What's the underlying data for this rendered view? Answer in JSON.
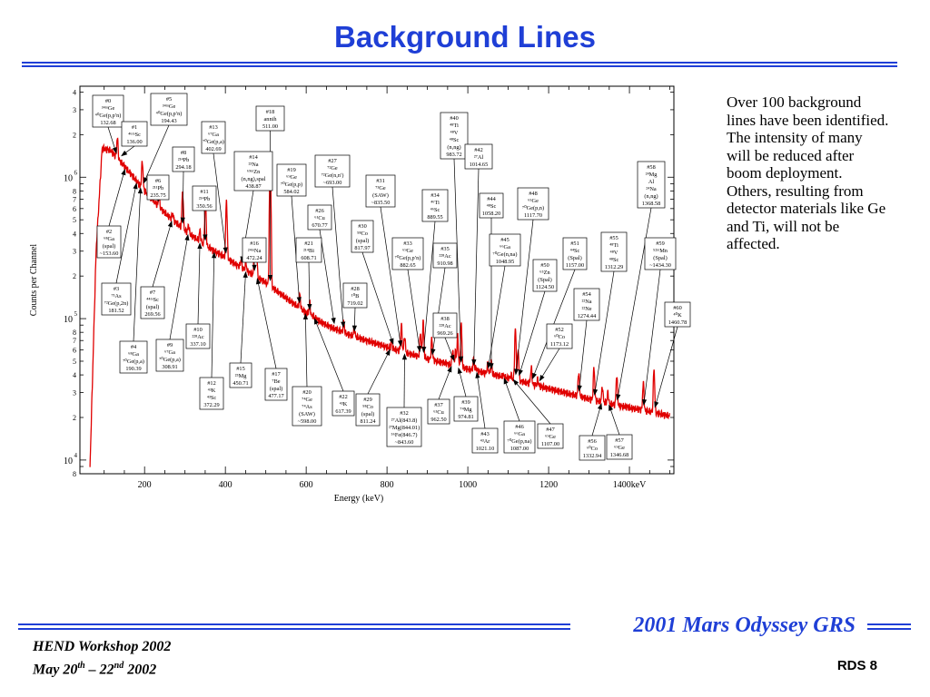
{
  "slide": {
    "title": "Background Lines",
    "side_text": "Over 100 background lines have been identified.  The intensity of many will be reduced after boom deployment.  Others, resulting from detector materials like Ge and Ti, will not be affected.",
    "brand": "2001 Mars Odyssey GRS",
    "workshop": "HEND Workshop 2002",
    "dates": {
      "pre": "May 20",
      "sup1": "th",
      "mid": " – 22",
      "sup2": "nd",
      "post": " 2002"
    },
    "slide_id": "RDS 8"
  },
  "colors": {
    "title": "#1f3fd6",
    "spectrum": "#e00000"
  },
  "chart_data": {
    "type": "line",
    "title": "",
    "xlabel": "Energy (keV)",
    "ylabel": "Counts per Channel",
    "xlim": [
      40,
      1510
    ],
    "ylim": [
      8000,
      4400000
    ],
    "yscale": "log",
    "x_ticks": [
      {
        "v": 200,
        "t": "200"
      },
      {
        "v": 400,
        "t": "400"
      },
      {
        "v": 600,
        "t": "600"
      },
      {
        "v": 800,
        "t": "800"
      },
      {
        "v": 1000,
        "t": "1000"
      },
      {
        "v": 1200,
        "t": "1200"
      },
      {
        "v": 1400,
        "t": "1400keV"
      }
    ],
    "y_decades": [
      {
        "v": 10000,
        "base": "10",
        "exp": "4"
      },
      {
        "v": 100000,
        "base": "10",
        "exp": "5"
      },
      {
        "v": 1000000,
        "base": "10",
        "exp": "6"
      }
    ],
    "y_minor_labels": [
      "2",
      "3",
      "4",
      "5",
      "6",
      "7",
      "8"
    ],
    "continuum": [
      [
        65,
        9000
      ],
      [
        80,
        300000
      ],
      [
        95,
        1600000
      ],
      [
        115,
        1550000
      ],
      [
        150,
        1200000
      ],
      [
        200,
        800000
      ],
      [
        250,
        560000
      ],
      [
        300,
        420000
      ],
      [
        350,
        330000
      ],
      [
        400,
        270000
      ],
      [
        450,
        220000
      ],
      [
        500,
        180000
      ],
      [
        550,
        140000
      ],
      [
        600,
        110000
      ],
      [
        650,
        90000
      ],
      [
        700,
        78000
      ],
      [
        750,
        70000
      ],
      [
        800,
        63000
      ],
      [
        850,
        57000
      ],
      [
        900,
        52000
      ],
      [
        950,
        48000
      ],
      [
        1000,
        44000
      ],
      [
        1050,
        41000
      ],
      [
        1100,
        38000
      ],
      [
        1150,
        35000
      ],
      [
        1200,
        32000
      ],
      [
        1250,
        29500
      ],
      [
        1300,
        27000
      ],
      [
        1350,
        25000
      ],
      [
        1400,
        23500
      ],
      [
        1450,
        22000
      ],
      [
        1500,
        20500
      ]
    ],
    "peaks": [
      {
        "e": 132.68,
        "y": 1900000
      },
      {
        "e": 136.0,
        "y": 1000000
      },
      {
        "e": 153.6,
        "y": 650000
      },
      {
        "e": 181.52,
        "y": 620000
      },
      {
        "e": 194.43,
        "y": 1300000
      },
      {
        "e": 235.75,
        "y": 720000
      },
      {
        "e": 269.56,
        "y": 560000
      },
      {
        "e": 294.18,
        "y": 800000
      },
      {
        "e": 308.91,
        "y": 460000
      },
      {
        "e": 337.1,
        "y": 420000
      },
      {
        "e": 350.56,
        "y": 700000
      },
      {
        "e": 372.29,
        "y": 290000
      },
      {
        "e": 402.69,
        "y": 690000
      },
      {
        "e": 438.87,
        "y": 260000
      },
      {
        "e": 450.71,
        "y": 250000
      },
      {
        "e": 472.24,
        "y": 330000
      },
      {
        "e": 477.17,
        "y": 280000
      },
      {
        "e": 511.0,
        "y": 1350000
      },
      {
        "e": 584.02,
        "y": 150000
      },
      {
        "e": 598.0,
        "y": 110000
      },
      {
        "e": 608.71,
        "y": 130000
      },
      {
        "e": 617.39,
        "y": 105000
      },
      {
        "e": 693.0,
        "y": 95000
      },
      {
        "e": 719.02,
        "y": 85000
      },
      {
        "e": 811.24,
        "y": 70000
      },
      {
        "e": 835.5,
        "y": 90000
      },
      {
        "e": 843.6,
        "y": 75000
      },
      {
        "e": 882.65,
        "y": 80000
      },
      {
        "e": 889.55,
        "y": 95000
      },
      {
        "e": 910.98,
        "y": 72000
      },
      {
        "e": 962.5,
        "y": 60000
      },
      {
        "e": 969.26,
        "y": 58000
      },
      {
        "e": 974.81,
        "y": 75000
      },
      {
        "e": 983.72,
        "y": 90000
      },
      {
        "e": 1014.65,
        "y": 52000
      },
      {
        "e": 1021.1,
        "y": 45000
      },
      {
        "e": 1048.95,
        "y": 47000
      },
      {
        "e": 1058.2,
        "y": 50000
      },
      {
        "e": 1087.0,
        "y": 40000
      },
      {
        "e": 1107.0,
        "y": 40000
      },
      {
        "e": 1117.7,
        "y": 85000
      },
      {
        "e": 1124.5,
        "y": 60000
      },
      {
        "e": 1157.0,
        "y": 45000
      },
      {
        "e": 1173.12,
        "y": 37000
      },
      {
        "e": 1274.44,
        "y": 42000
      },
      {
        "e": 1312.29,
        "y": 45000
      },
      {
        "e": 1332.94,
        "y": 33000
      },
      {
        "e": 1346.68,
        "y": 30000
      },
      {
        "e": 1368.58,
        "y": 40000
      },
      {
        "e": 1434.3,
        "y": 35000
      },
      {
        "e": 1460.78,
        "y": 44000
      }
    ],
    "annotations": [
      {
        "x": 102,
        "y": 105,
        "w": 34,
        "pe": 132.68,
        "l": [
          "#0",
          "³⁴ᵐGe",
          "⁴⁰Ge(p,p′n)",
          "132.68"
        ]
      },
      {
        "x": 166,
        "y": 103,
        "w": 40,
        "pe": 194.43,
        "l": [
          "#5",
          "³⁴ᵐGe",
          "⁴⁰Ge(p,p′n)",
          "194.43"
        ]
      },
      {
        "x": 282,
        "y": 117,
        "w": 31,
        "pe": 511.0,
        "l": [
          "#18",
          "annih",
          "511.00"
        ]
      },
      {
        "x": 485,
        "y": 124,
        "w": 30,
        "pe": 983.72,
        "l": [
          "#40",
          "⁴⁸Ti",
          "⁴⁸V",
          "⁴⁸Sc",
          "(n,ng)",
          "983.72"
        ]
      },
      {
        "x": 134,
        "y": 134,
        "w": 28,
        "pe": 136.0,
        "l": [
          "#1",
          "⁴⁶ᵐSc",
          "136.00"
        ]
      },
      {
        "x": 222,
        "y": 134,
        "w": 26,
        "pe": 402.69,
        "l": [
          "#13",
          "⁶⁷Ga",
          "⁷⁰Ge(p,a)",
          "402.69"
        ]
      },
      {
        "x": 190,
        "y": 162,
        "w": 24,
        "pe": 294.18,
        "l": [
          "#8",
          "²¹⁴Pb",
          "294.18"
        ]
      },
      {
        "x": 258,
        "y": 167,
        "w": 42,
        "pe": 438.87,
        "l": [
          "#14",
          "²³Na",
          "⁶⁹ᵐZn",
          "(n,ng),spal",
          "438.87"
        ]
      },
      {
        "x": 512,
        "y": 159,
        "w": 30,
        "pe": 1014.65,
        "l": [
          "#42",
          "²⁷Al",
          "1014.65"
        ]
      },
      {
        "x": 347,
        "y": 171,
        "w": 38,
        "pe": 693.0,
        "l": [
          "#27",
          "⁷²Ge",
          "⁷²Ge(n,n′)",
          "~693.00"
        ]
      },
      {
        "x": 305,
        "y": 181,
        "w": 32,
        "pe": 584.02,
        "l": [
          "#19",
          "⁶⁹Ge",
          "⁷⁰Ge(p,p)",
          "584.02"
        ]
      },
      {
        "x": 702,
        "y": 178,
        "w": 30,
        "pe": 1368.58,
        "l": [
          "#58",
          "²⁴Mg",
          "Al",
          "²⁴Na",
          "(n,ng)",
          "1368.58"
        ]
      },
      {
        "x": 162,
        "y": 193,
        "w": 24,
        "pe": 235.75,
        "l": [
          "#6",
          "²¹¹Pb",
          "235.75"
        ]
      },
      {
        "x": 403,
        "y": 193,
        "w": 32,
        "pe": 835.5,
        "l": [
          "#31",
          "⁷³Ge",
          "(SAW)",
          "~835.50"
        ]
      },
      {
        "x": 212,
        "y": 205,
        "w": 26,
        "pe": 350.56,
        "l": [
          "#11",
          "²¹⁴Pb",
          "350.56"
        ]
      },
      {
        "x": 570,
        "y": 207,
        "w": 34,
        "pe": 1117.7,
        "l": [
          "#48",
          "⁶⁵Ge",
          "⁷⁰Ge(p,n)",
          "1117.70"
        ]
      },
      {
        "x": 465,
        "y": 209,
        "w": 28,
        "pe": 889.55,
        "l": [
          "#34",
          "⁴⁶Ti",
          "⁴⁶Sc",
          "889.55"
        ]
      },
      {
        "x": 528,
        "y": 213,
        "w": 26,
        "pe": 1058.2,
        "l": [
          "#44",
          "⁴⁸Sc",
          "1058.20"
        ]
      },
      {
        "x": 339,
        "y": 226,
        "w": 26,
        "pe": 670.77,
        "l": [
          "#26",
          "⁶¹Cu",
          "670.77"
        ]
      },
      {
        "x": 387,
        "y": 243,
        "w": 24,
        "pe": 817.97,
        "l": [
          "#30",
          "⁵⁸Co",
          "(spal)",
          "817.97"
        ]
      },
      {
        "x": 107,
        "y": 249,
        "w": 26,
        "pe": 153.6,
        "l": [
          "#2",
          "⁶⁸Ga",
          "(spal)",
          "~153.60"
        ]
      },
      {
        "x": 539,
        "y": 258,
        "w": 34,
        "pe": 1048.95,
        "l": [
          "#45",
          "⁶⁶Ga",
          "⁷⁰Ge(n,na)",
          "1048.95"
        ]
      },
      {
        "x": 267,
        "y": 262,
        "w": 26,
        "pe": 472.24,
        "l": [
          "#16",
          "²⁴ᵐNa",
          "472.24"
        ]
      },
      {
        "x": 326,
        "y": 262,
        "w": 28,
        "pe": 608.71,
        "l": [
          "#21",
          "²¹⁴Bi",
          "608.71"
        ]
      },
      {
        "x": 432,
        "y": 262,
        "w": 34,
        "pe": 882.65,
        "l": [
          "#33",
          "⁶⁹Ge",
          "⁷⁰Ge(p,p′n)",
          "882.65"
        ]
      },
      {
        "x": 477,
        "y": 268,
        "w": 26,
        "pe": 910.98,
        "l": [
          "#35",
          "²²⁸Ac",
          "910.98"
        ]
      },
      {
        "x": 620,
        "y": 262,
        "w": 26,
        "pe": 1157.0,
        "l": [
          "#51",
          "⁴⁴Sc",
          "(Spal)",
          "1157.00"
        ]
      },
      {
        "x": 662,
        "y": 256,
        "w": 28,
        "pe": 1312.29,
        "l": [
          "#55",
          "⁴⁸Ti",
          "⁴⁸V",
          "⁴⁸Sc",
          "1312.29"
        ]
      },
      {
        "x": 710,
        "y": 262,
        "w": 34,
        "pe": 1434.3,
        "l": [
          "#59",
          "⁵²ᵐMn",
          "(Spal)",
          "~1434.30"
        ]
      },
      {
        "x": 587,
        "y": 286,
        "w": 26,
        "pe": 1124.5,
        "l": [
          "#50",
          "⁶⁵Zn",
          "(Spal)",
          "1124.50"
        ]
      },
      {
        "x": 112,
        "y": 312,
        "w": 32,
        "pe": 181.52,
        "l": [
          "#3",
          "⁷¹As",
          "⁷²Ge(p,2n)",
          "181.52"
        ]
      },
      {
        "x": 155,
        "y": 316,
        "w": 26,
        "pe": 269.56,
        "l": [
          "#7",
          "⁴⁴ᵐSc",
          "(spal)",
          "269.56"
        ]
      },
      {
        "x": 378,
        "y": 312,
        "w": 26,
        "pe": 719.02,
        "l": [
          "#28",
          "¹⁰B",
          "719.02"
        ]
      },
      {
        "x": 632,
        "y": 318,
        "w": 28,
        "pe": 1274.44,
        "l": [
          "#54",
          "²²Na",
          "²²Ne",
          "1274.44"
        ]
      },
      {
        "x": 732,
        "y": 333,
        "w": 28,
        "pe": 1460.78,
        "l": [
          "#60",
          "⁴⁰K",
          "1460.78"
        ]
      },
      {
        "x": 477,
        "y": 345,
        "w": 26,
        "pe": 969.26,
        "l": [
          "#38",
          "²²⁸Ac",
          "969.26"
        ]
      },
      {
        "x": 205,
        "y": 357,
        "w": 26,
        "pe": 337.1,
        "l": [
          "#10",
          "²²⁸Ac",
          "337.10"
        ]
      },
      {
        "x": 602,
        "y": 357,
        "w": 28,
        "pe": 1173.12,
        "l": [
          "#52",
          "⁶⁰Co",
          "1173.12"
        ]
      },
      {
        "x": 132,
        "y": 376,
        "w": 30,
        "pe": 190.39,
        "l": [
          "#4",
          "⁶⁸Ga",
          "⁷⁰Ge(p,a)",
          "190.39"
        ]
      },
      {
        "x": 172,
        "y": 374,
        "w": 30,
        "pe": 308.91,
        "l": [
          "#9",
          "⁶⁷Ga",
          "⁷⁰Ge(p,a)",
          "308.91"
        ]
      },
      {
        "x": 253,
        "y": 400,
        "w": 24,
        "pe": 450.71,
        "l": [
          "#15",
          "²⁵Mg",
          "450.71"
        ]
      },
      {
        "x": 292,
        "y": 406,
        "w": 24,
        "pe": 477.17,
        "l": [
          "#17",
          "⁷Be",
          "(spal)",
          "477.17"
        ]
      },
      {
        "x": 220,
        "y": 416,
        "w": 26,
        "pe": 372.29,
        "l": [
          "#12",
          "⁴³K",
          "⁴³Sc",
          "372.29"
        ]
      },
      {
        "x": 322,
        "y": 426,
        "w": 32,
        "pe": 598.0,
        "l": [
          "#20",
          "⁷⁴Ge",
          "⁷⁴As",
          "(SAW)",
          "~598.00"
        ]
      },
      {
        "x": 366,
        "y": 431,
        "w": 24,
        "pe": 617.39,
        "l": [
          "#22",
          "⁴³K",
          "617.39"
        ]
      },
      {
        "x": 392,
        "y": 434,
        "w": 26,
        "pe": 811.24,
        "l": [
          "#29",
          "⁵⁸Co",
          "(spal)",
          "811.24"
        ]
      },
      {
        "x": 426,
        "y": 449,
        "w": 38,
        "pe": 843.6,
        "l": [
          "#32",
          "²⁷Al(843.8)",
          "²⁷Mg(844.01)",
          "⁵⁶Fe(846.7)",
          "~843.60"
        ]
      },
      {
        "x": 471,
        "y": 440,
        "w": 24,
        "pe": 962.5,
        "l": [
          "#37",
          "⁶³Cu",
          "962.50"
        ]
      },
      {
        "x": 500,
        "y": 437,
        "w": 26,
        "pe": 974.81,
        "l": [
          "#39",
          "⁷⁴Mg",
          "974.81"
        ]
      },
      {
        "x": 520,
        "y": 472,
        "w": 28,
        "pe": 1021.1,
        "l": [
          "#43",
          "⁴³Ar",
          "1021.10"
        ]
      },
      {
        "x": 555,
        "y": 464,
        "w": 34,
        "pe": 1087.0,
        "l": [
          "#46",
          "⁶⁶Ga",
          "⁷⁰Ge(p,na)",
          "1087.00"
        ]
      },
      {
        "x": 592,
        "y": 467,
        "w": 28,
        "pe": 1107.0,
        "l": [
          "#47",
          "⁶⁹Ge",
          "1107.00"
        ]
      },
      {
        "x": 638,
        "y": 480,
        "w": 28,
        "pe": 1332.94,
        "l": [
          "#56",
          "⁶⁰Co",
          "1332.94"
        ]
      },
      {
        "x": 668,
        "y": 479,
        "w": 28,
        "pe": 1346.68,
        "l": [
          "#57",
          "⁶⁹Ge",
          "1346.68"
        ]
      }
    ]
  }
}
